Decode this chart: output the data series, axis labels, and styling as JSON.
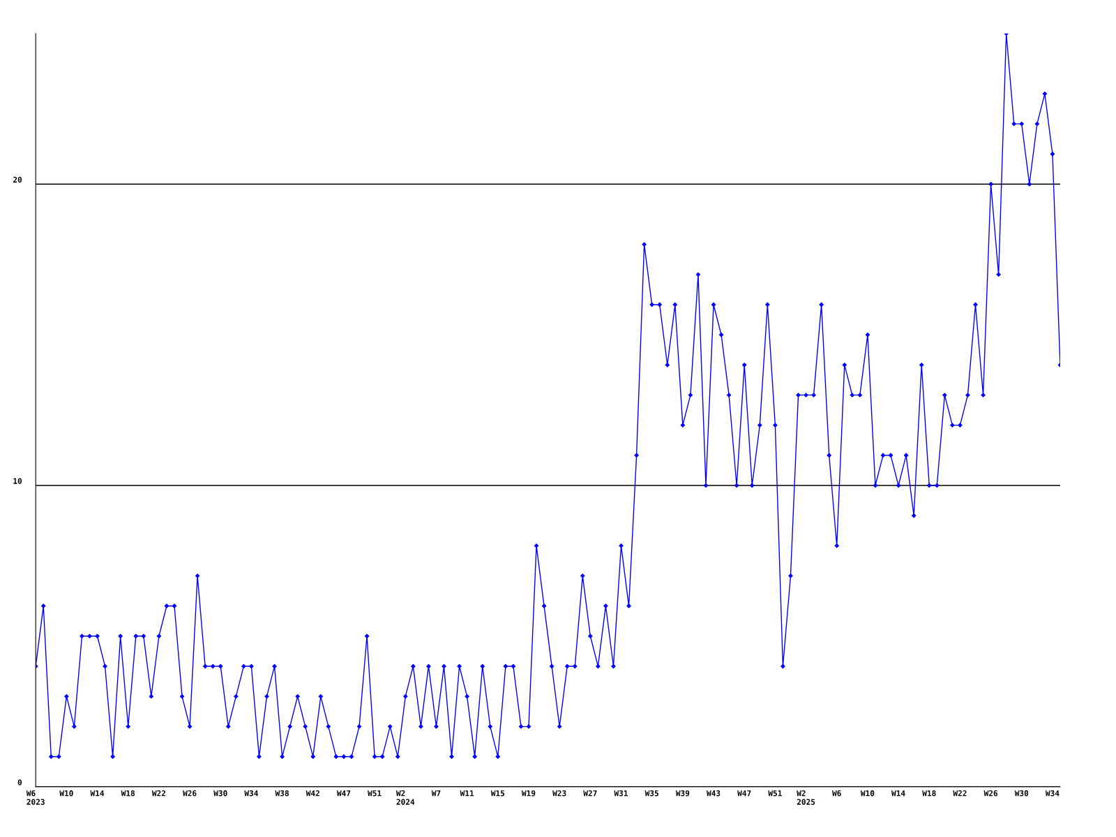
{
  "chart_data": {
    "type": "line",
    "categories": [
      "W6\n2023",
      null,
      null,
      null,
      "W10",
      null,
      null,
      null,
      "W14",
      null,
      null,
      null,
      "W18",
      null,
      null,
      null,
      "W22",
      null,
      null,
      null,
      "W26",
      null,
      null,
      null,
      "W30",
      null,
      null,
      null,
      "W34",
      null,
      null,
      null,
      "W38",
      null,
      null,
      null,
      "W42",
      null,
      null,
      null,
      "W47",
      null,
      null,
      null,
      "W51",
      null,
      null,
      null,
      "W2\n2024",
      null,
      null,
      null,
      "W7",
      null,
      null,
      null,
      "W11",
      null,
      null,
      null,
      "W15",
      null,
      null,
      null,
      "W19",
      null,
      null,
      null,
      "W23",
      null,
      null,
      null,
      "W27",
      null,
      null,
      null,
      "W31",
      null,
      null,
      null,
      "W35",
      null,
      null,
      null,
      "W39",
      null,
      null,
      null,
      "W43",
      null,
      null,
      null,
      "W47",
      null,
      null,
      null,
      "W51",
      null,
      null,
      null,
      "W2\n2025",
      null,
      null,
      null,
      "W6",
      null,
      null,
      null,
      "W10",
      null,
      null,
      null,
      "W14",
      null,
      null,
      null,
      "W18",
      null,
      null,
      null,
      "W22",
      null,
      null,
      null,
      "W26",
      null,
      null,
      null,
      "W30",
      null,
      null,
      null,
      "W34",
      null
    ],
    "series": [
      {
        "color": "#0000ff",
        "values": [
          4,
          6,
          1,
          1,
          3,
          2,
          5,
          5,
          5,
          4,
          1,
          5,
          2,
          5,
          5,
          3,
          5,
          6,
          6,
          3,
          2,
          7,
          4,
          4,
          4,
          2,
          3,
          4,
          4,
          1,
          3,
          4,
          1,
          2,
          3,
          2,
          1,
          3,
          2,
          1,
          1,
          1,
          2,
          5,
          1,
          1,
          2,
          1,
          3,
          4,
          2,
          4,
          2,
          4,
          1,
          4,
          3,
          1,
          4,
          2,
          1,
          4,
          4,
          2,
          2,
          8,
          6,
          4,
          2,
          4,
          4,
          7,
          5,
          4,
          6,
          4,
          8,
          6,
          11,
          18,
          16,
          16,
          14,
          16,
          12,
          13,
          17,
          10,
          16,
          15,
          13,
          10,
          14,
          10,
          12,
          16,
          12,
          4,
          7,
          13,
          13,
          13,
          16,
          11,
          8,
          14,
          13,
          13,
          15,
          10,
          11,
          11,
          10,
          11,
          9,
          14,
          10,
          10,
          13,
          12,
          12,
          13,
          16,
          13,
          20,
          17,
          25,
          22,
          22,
          20,
          22,
          23,
          21,
          14
        ]
      }
    ],
    "ylim": [
      0,
      25
    ],
    "yticks": [
      0,
      10,
      20
    ],
    "grid": "y",
    "marker": "diamond",
    "line_style": "solid"
  }
}
